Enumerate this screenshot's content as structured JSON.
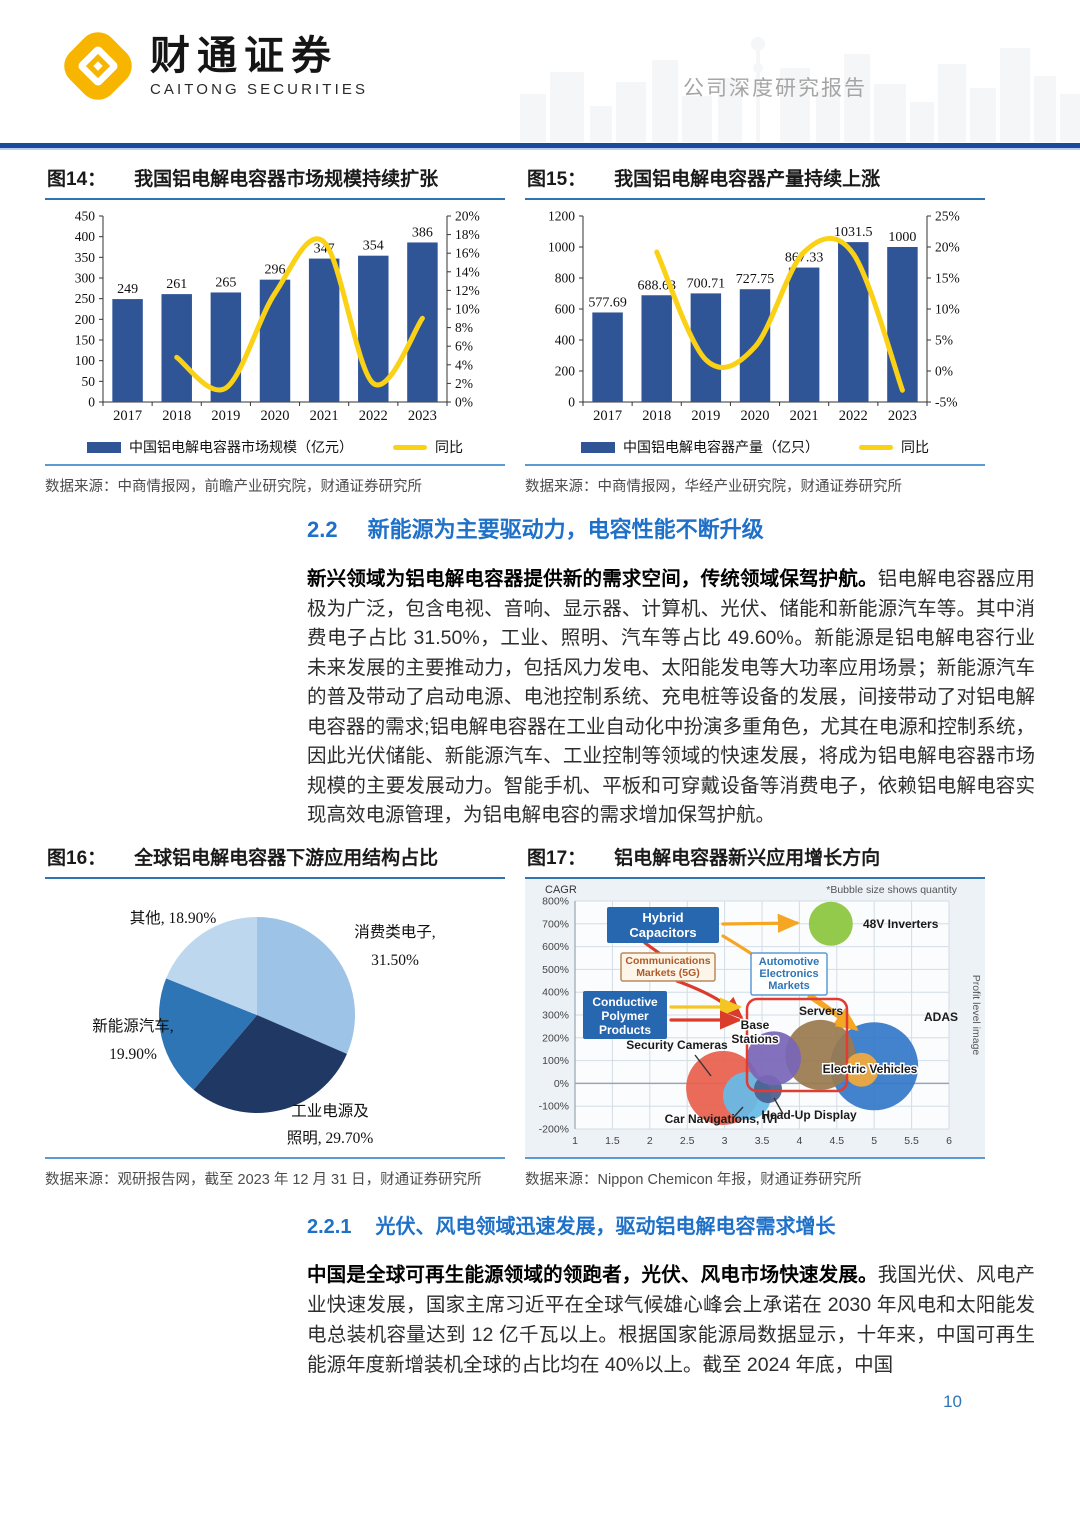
{
  "header": {
    "brand_cn": "财通证券",
    "brand_en": "CAITONG SECURITIES",
    "doc_type": "公司深度研究报告"
  },
  "figures": {
    "fig14": {
      "label": "图14：",
      "title": "我国铝电解电容器市场规模持续扩张",
      "source": "数据来源：中商情报网，前瞻产业研究院，财通证券研究所"
    },
    "fig15": {
      "label": "图15：",
      "title": "我国铝电解电容器产量持续上涨",
      "source": "数据来源：中商情报网，华经产业研究院，财通证券研究所"
    },
    "fig16": {
      "label": "图16：",
      "title": "全球铝电解电容器下游应用结构占比",
      "source": "数据来源：观研报告网，截至 2023 年 12 月 31 日，财通证券研究所"
    },
    "fig17": {
      "label": "图17：",
      "title": "铝电解电容器新兴应用增长方向",
      "source": "数据来源：Nippon Chemicon 年报，财通证券研究所"
    }
  },
  "sections": {
    "s22": {
      "num": "2.2",
      "title": "新能源为主要驱动力，电容性能不断升级"
    },
    "s221": {
      "num": "2.2.1",
      "title": "光伏、风电领域迅速发展，驱动铝电解电容需求增长"
    }
  },
  "paragraphs": {
    "p1_bold": "新兴领域为铝电解电容器提供新的需求空间，传统领域保驾护航。",
    "p1_rest": "铝电解电容器应用极为广泛，包含电视、音响、显示器、计算机、光伏、储能和新能源汽车等。其中消费电子占比 31.50%，工业、照明、汽车等占比 49.60%。新能源是铝电解电容行业未来发展的主要推动力，包括风力发电、太阳能发电等大功率应用场景；新能源汽车的普及带动了启动电源、电池控制系统、充电桩等设备的发展，间接带动了对铝电解电容器的需求;铝电解电容器在工业自动化中扮演多重角色，尤其在电源和控制系统，因此光伏储能、新能源汽车、工业控制等领域的快速发展，将成为铝电解电容器市场规模的主要发展动力。智能手机、平板和可穿戴设备等消费电子，依赖铝电解电容实现高效电源管理，为铝电解电容的需求增加保驾护航。",
    "p2_bold": "中国是全球可再生能源领域的领跑者，光伏、风电市场快速发展。",
    "p2_rest": "我国光伏、风电产业快速发展，国家主席习近平在全球气候雄心峰会上承诺在 2030 年风电和太阳能发电总装机容量达到 12 亿千瓦以上。根据国家能源局数据显示，十年来，中国可再生能源年度新增装机全球的占比均在 40%以上。截至 2024 年底，中国"
  },
  "page_number": "10",
  "chart_data": [
    {
      "id": "fig14",
      "type": "bar",
      "title": "我国铝电解电容器市场规模持续扩张",
      "categories": [
        "2017",
        "2018",
        "2019",
        "2020",
        "2021",
        "2022",
        "2023"
      ],
      "series": [
        {
          "name": "中国铝电解电容器市场规模（亿元）",
          "type": "bar",
          "values": [
            249,
            261,
            265,
            296,
            347,
            354,
            386
          ],
          "labels": [
            "249",
            "261",
            "265",
            "296",
            "347",
            "354",
            "386"
          ],
          "color": "#2f5597"
        },
        {
          "name": "同比",
          "type": "line",
          "axis": "right",
          "values": [
            null,
            4.8,
            1.5,
            11.7,
            17.2,
            2.0,
            9.0
          ],
          "color": "#fbd116"
        }
      ],
      "ylim_left": [
        0,
        450
      ],
      "ytick_left": 50,
      "ylim_right": [
        0,
        20
      ],
      "ytick_right": 2,
      "right_suffix": "%"
    },
    {
      "id": "fig15",
      "type": "bar",
      "title": "我国铝电解电容器产量持续上涨",
      "categories": [
        "2017",
        "2018",
        "2019",
        "2020",
        "2021",
        "2022",
        "2023"
      ],
      "series": [
        {
          "name": "中国铝电解电容器产量（亿只）",
          "type": "bar",
          "values": [
            577.69,
            688.63,
            700.71,
            727.75,
            867.33,
            1031.5,
            1000
          ],
          "labels": [
            "577.69",
            "688.63",
            "700.71",
            "727.75",
            "867.33",
            "1031.5",
            "1000"
          ],
          "color": "#2f5597"
        },
        {
          "name": "同比",
          "type": "line",
          "axis": "right",
          "values": [
            null,
            19.2,
            1.8,
            3.9,
            19.2,
            18.9,
            -3.1
          ],
          "color": "#fbd116"
        }
      ],
      "ylim_left": [
        0,
        1200
      ],
      "ytick_left": 200,
      "ylim_right": [
        -5,
        25
      ],
      "ytick_right": 5,
      "right_suffix": "%"
    },
    {
      "id": "fig16",
      "type": "pie",
      "title": "全球铝电解电容器下游应用结构占比",
      "slices": [
        {
          "label": "消费类电子",
          "value": 31.5,
          "label_lines": [
            "消费类电子,",
            "31.50%"
          ],
          "color": "#9dc3e6"
        },
        {
          "label": "工业电源及照明",
          "value": 29.7,
          "label_lines": [
            "工业电源及",
            "照明, 29.70%"
          ],
          "color": "#1f3864"
        },
        {
          "label": "新能源汽车",
          "value": 19.9,
          "label_lines": [
            "新能源汽车,",
            "19.90%"
          ],
          "color": "#2e75b6"
        },
        {
          "label": "其他",
          "value": 18.9,
          "label_lines": [
            "其他, 18.90%"
          ],
          "color": "#bdd7ee"
        }
      ]
    },
    {
      "id": "fig17",
      "type": "scatter",
      "title": "铝电解电容器新兴应用增长方向",
      "ylabel": "CAGR",
      "note": "*Bubble size shows quantity",
      "right_label": "Profit level image",
      "xlim": [
        1,
        6
      ],
      "xtick": 0.5,
      "ylim": [
        -200,
        800
      ],
      "ytick": 100,
      "bubbles": [
        {
          "label": "48V Inverters",
          "x": 4.42,
          "cagr": 700,
          "r": 22,
          "color": "#8cc63e"
        },
        {
          "label": "Base Stations",
          "x": 3.66,
          "cagr": 110,
          "r": 27,
          "color": "#7a66b8",
          "label_lines": [
            "Base",
            "Stations"
          ]
        },
        {
          "label": "Servers",
          "x": 4.28,
          "cagr": 125,
          "r": 35,
          "color": "#9a7a50"
        },
        {
          "label": "ADAS",
          "x": 5.0,
          "cagr": 75,
          "r": 44,
          "color": "#3579c8"
        },
        {
          "label": "Electric Vehicles",
          "x": 4.83,
          "cagr": 60,
          "r": 17,
          "color": "#f2a93b"
        },
        {
          "label": "Security Cameras",
          "x": 2.98,
          "cagr": -20,
          "r": 37,
          "color": "#e8604c"
        },
        {
          "label": "Car Navigations, IVI",
          "x": 3.3,
          "cagr": -55,
          "r": 24,
          "color": "#66bbe8"
        },
        {
          "label": "Head-Up Display",
          "x": 3.58,
          "cagr": -25,
          "r": 14,
          "color": "#49608f"
        }
      ],
      "boxes": [
        {
          "label_lines": [
            "Hybrid",
            "Capacitors"
          ],
          "style": "solid"
        },
        {
          "label_lines": [
            "Communications",
            "Markets (5G)"
          ],
          "style": "outline-tan"
        },
        {
          "label_lines": [
            "Conductive",
            "Polymer",
            "Products"
          ],
          "style": "solid"
        },
        {
          "label_lines": [
            "Automotive",
            "Electronics",
            "Markets"
          ],
          "style": "outline-blue"
        }
      ]
    }
  ]
}
